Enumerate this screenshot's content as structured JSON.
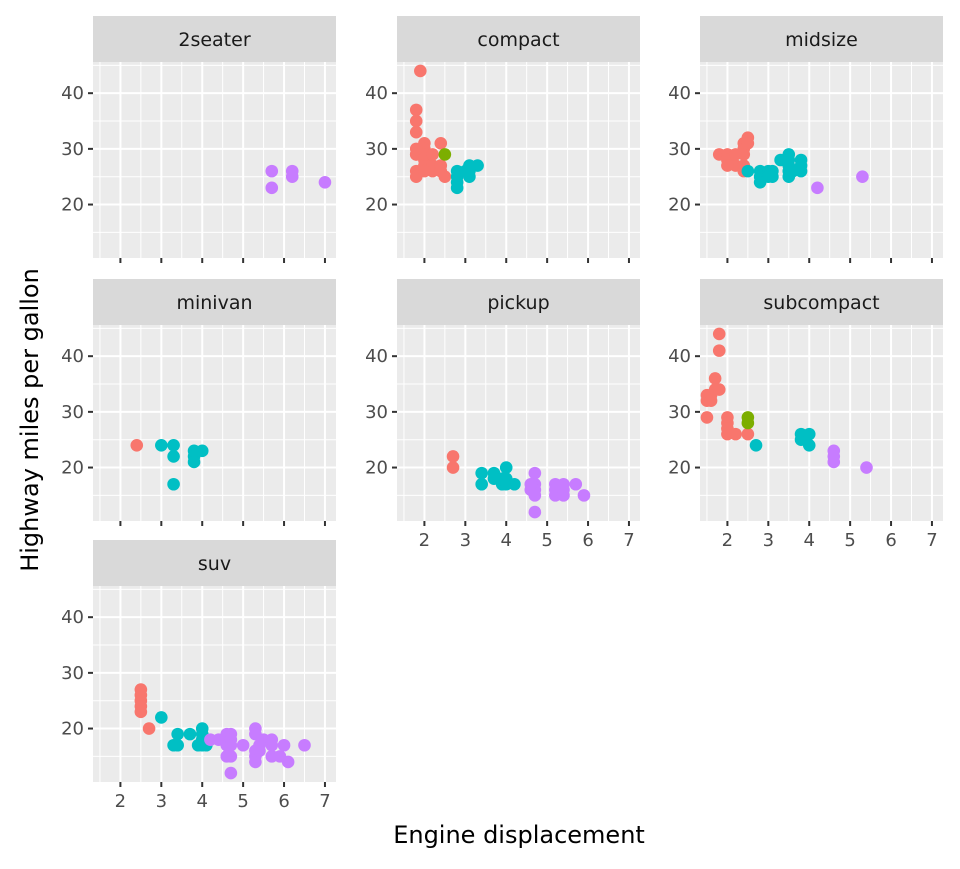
{
  "chart_data": {
    "type": "scatter",
    "layout": "facet_wrap",
    "xlabel": "Engine displacement",
    "ylabel": "Highway miles per gallon",
    "xlim": [
      1.33,
      7.27
    ],
    "ylim": [
      10.4,
      45.6
    ],
    "x_ticks": [
      2,
      3,
      4,
      5,
      6,
      7
    ],
    "y_ticks": [
      20,
      30,
      40
    ],
    "grid": true,
    "color_by": "cylinders",
    "colors": {
      "4": "#F8766D",
      "5": "#7CAE00",
      "6": "#00BFC4",
      "8": "#C77CFF"
    },
    "panels": [
      {
        "title": "2seater",
        "x_labels": false,
        "points": [
          [
            5.7,
            26,
            8
          ],
          [
            5.7,
            23,
            8
          ],
          [
            6.2,
            26,
            8
          ],
          [
            6.2,
            25,
            8
          ],
          [
            7.0,
            24,
            8
          ]
        ]
      },
      {
        "title": "compact",
        "x_labels": false,
        "points": [
          [
            1.8,
            29,
            4
          ],
          [
            1.8,
            29,
            4
          ],
          [
            2.0,
            31,
            4
          ],
          [
            2.0,
            30,
            4
          ],
          [
            1.8,
            26,
            4
          ],
          [
            1.8,
            25,
            4
          ],
          [
            2.0,
            28,
            4
          ],
          [
            2.0,
            27,
            4
          ],
          [
            2.0,
            29,
            4
          ],
          [
            2.2,
            26,
            4
          ],
          [
            2.2,
            27,
            4
          ],
          [
            2.4,
            31,
            4
          ],
          [
            2.4,
            27,
            4
          ],
          [
            2.5,
            25,
            4
          ],
          [
            1.9,
            44,
            4
          ],
          [
            1.8,
            37,
            4
          ],
          [
            1.8,
            35,
            4
          ],
          [
            1.8,
            33,
            4
          ],
          [
            2.0,
            26,
            4
          ],
          [
            2.2,
            29,
            4
          ],
          [
            2.4,
            26,
            4
          ],
          [
            1.8,
            30,
            4
          ],
          [
            2.5,
            29,
            5
          ],
          [
            2.8,
            26,
            6
          ],
          [
            2.8,
            25,
            6
          ],
          [
            2.8,
            24,
            6
          ],
          [
            2.8,
            23,
            6
          ],
          [
            3.1,
            27,
            6
          ],
          [
            3.1,
            25,
            6
          ],
          [
            3.3,
            27,
            6
          ],
          [
            3.0,
            26,
            6
          ],
          [
            3.1,
            26,
            6
          ]
        ]
      },
      {
        "title": "midsize",
        "x_labels": false,
        "points": [
          [
            1.8,
            29,
            4
          ],
          [
            2.0,
            29,
            4
          ],
          [
            2.0,
            28,
            4
          ],
          [
            2.2,
            27,
            4
          ],
          [
            2.4,
            31,
            4
          ],
          [
            2.4,
            30,
            4
          ],
          [
            2.4,
            29,
            4
          ],
          [
            2.5,
            32,
            4
          ],
          [
            2.5,
            31,
            4
          ],
          [
            2.4,
            27,
            4
          ],
          [
            2.4,
            26,
            4
          ],
          [
            2.2,
            29,
            4
          ],
          [
            2.0,
            27,
            4
          ],
          [
            2.5,
            26,
            6
          ],
          [
            2.8,
            26,
            6
          ],
          [
            2.8,
            25,
            6
          ],
          [
            2.8,
            24,
            6
          ],
          [
            3.0,
            26,
            6
          ],
          [
            3.1,
            26,
            6
          ],
          [
            3.1,
            25,
            6
          ],
          [
            3.3,
            28,
            6
          ],
          [
            3.5,
            29,
            6
          ],
          [
            3.5,
            28,
            6
          ],
          [
            3.5,
            27,
            6
          ],
          [
            3.5,
            26,
            6
          ],
          [
            3.5,
            25,
            6
          ],
          [
            3.6,
            26,
            6
          ],
          [
            3.8,
            28,
            6
          ],
          [
            3.8,
            27,
            6
          ],
          [
            3.8,
            26,
            6
          ],
          [
            3.0,
            25,
            6
          ],
          [
            4.2,
            23,
            8
          ],
          [
            5.3,
            25,
            8
          ]
        ]
      },
      {
        "title": "minivan",
        "x_labels": false,
        "points": [
          [
            2.4,
            24,
            4
          ],
          [
            3.0,
            24,
            6
          ],
          [
            3.3,
            24,
            6
          ],
          [
            3.3,
            22,
            6
          ],
          [
            3.3,
            17,
            6
          ],
          [
            3.8,
            23,
            6
          ],
          [
            3.8,
            22,
            6
          ],
          [
            3.8,
            21,
            6
          ],
          [
            4.0,
            23,
            6
          ]
        ]
      },
      {
        "title": "pickup",
        "x_labels": true,
        "points": [
          [
            2.7,
            22,
            4
          ],
          [
            2.7,
            20,
            4
          ],
          [
            3.4,
            19,
            6
          ],
          [
            3.4,
            17,
            6
          ],
          [
            3.7,
            19,
            6
          ],
          [
            3.7,
            18,
            6
          ],
          [
            3.9,
            17,
            6
          ],
          [
            3.9,
            18,
            6
          ],
          [
            4.0,
            20,
            6
          ],
          [
            4.0,
            18,
            6
          ],
          [
            4.0,
            17,
            6
          ],
          [
            4.2,
            17,
            6
          ],
          [
            4.7,
            19,
            8
          ],
          [
            4.7,
            17,
            8
          ],
          [
            4.7,
            16,
            8
          ],
          [
            4.7,
            15,
            8
          ],
          [
            4.7,
            12,
            8
          ],
          [
            4.6,
            16,
            8
          ],
          [
            4.6,
            17,
            8
          ],
          [
            5.2,
            17,
            8
          ],
          [
            5.2,
            16,
            8
          ],
          [
            5.2,
            15,
            8
          ],
          [
            5.4,
            17,
            8
          ],
          [
            5.4,
            15,
            8
          ],
          [
            5.4,
            16,
            8
          ],
          [
            5.7,
            17,
            8
          ],
          [
            5.9,
            15,
            8
          ]
        ]
      },
      {
        "title": "subcompact",
        "x_labels": true,
        "points": [
          [
            1.5,
            33,
            4
          ],
          [
            1.5,
            32,
            4
          ],
          [
            1.5,
            29,
            4
          ],
          [
            1.6,
            33,
            4
          ],
          [
            1.6,
            32,
            4
          ],
          [
            1.8,
            44,
            4
          ],
          [
            1.8,
            41,
            4
          ],
          [
            1.7,
            36,
            4
          ],
          [
            1.7,
            34,
            4
          ],
          [
            1.8,
            34,
            4
          ],
          [
            2.0,
            29,
            4
          ],
          [
            2.0,
            28,
            4
          ],
          [
            2.0,
            27,
            4
          ],
          [
            2.0,
            26,
            4
          ],
          [
            2.2,
            26,
            4
          ],
          [
            2.5,
            26,
            4
          ],
          [
            2.5,
            29,
            5
          ],
          [
            2.5,
            28,
            5
          ],
          [
            2.7,
            24,
            6
          ],
          [
            3.8,
            26,
            6
          ],
          [
            3.8,
            25,
            6
          ],
          [
            4.0,
            26,
            6
          ],
          [
            4.0,
            24,
            6
          ],
          [
            4.6,
            23,
            8
          ],
          [
            4.6,
            22,
            8
          ],
          [
            4.6,
            21,
            8
          ],
          [
            5.4,
            20,
            8
          ]
        ]
      },
      {
        "title": "suv",
        "x_labels": true,
        "points": [
          [
            2.5,
            27,
            4
          ],
          [
            2.5,
            26,
            4
          ],
          [
            2.5,
            25,
            4
          ],
          [
            2.5,
            24,
            4
          ],
          [
            2.5,
            23,
            4
          ],
          [
            2.7,
            20,
            4
          ],
          [
            3.0,
            22,
            6
          ],
          [
            3.3,
            17,
            6
          ],
          [
            3.4,
            17,
            6
          ],
          [
            3.4,
            19,
            6
          ],
          [
            3.7,
            19,
            6
          ],
          [
            3.9,
            17,
            6
          ],
          [
            4.0,
            20,
            6
          ],
          [
            4.0,
            19,
            6
          ],
          [
            4.0,
            17,
            6
          ],
          [
            4.0,
            18,
            6
          ],
          [
            4.1,
            17,
            6
          ],
          [
            4.2,
            18,
            8
          ],
          [
            4.4,
            18,
            8
          ],
          [
            4.6,
            19,
            8
          ],
          [
            4.6,
            17,
            8
          ],
          [
            4.7,
            19,
            8
          ],
          [
            4.7,
            18,
            8
          ],
          [
            4.7,
            17,
            8
          ],
          [
            4.7,
            15,
            8
          ],
          [
            4.7,
            12,
            8
          ],
          [
            4.6,
            15,
            8
          ],
          [
            5.0,
            17,
            8
          ],
          [
            5.3,
            20,
            8
          ],
          [
            5.3,
            19,
            8
          ],
          [
            5.3,
            16,
            8
          ],
          [
            5.3,
            15,
            8
          ],
          [
            5.3,
            14,
            8
          ],
          [
            5.4,
            17,
            8
          ],
          [
            5.4,
            16,
            8
          ],
          [
            5.5,
            18,
            8
          ],
          [
            5.7,
            17,
            8
          ],
          [
            5.7,
            18,
            8
          ],
          [
            5.7,
            15,
            8
          ],
          [
            5.9,
            15,
            8
          ],
          [
            6.0,
            17,
            8
          ],
          [
            6.1,
            14,
            8
          ],
          [
            6.5,
            17,
            8
          ]
        ]
      }
    ]
  }
}
